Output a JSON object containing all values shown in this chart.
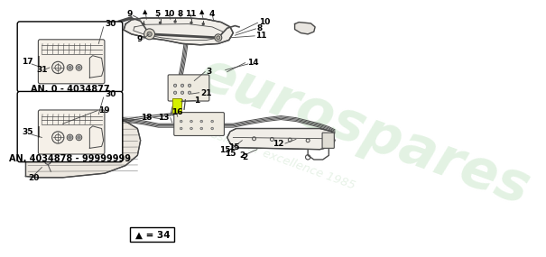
{
  "bg_color": "#ffffff",
  "watermark_text1": "eurospares",
  "watermark_text2": "a passion for excellence 1985",
  "watermark_color1": "#c8e6c8",
  "watermark_color2": "#d8ead8",
  "watermark_alpha": 0.5,
  "inset1_label": "AN. 0 - 4034877",
  "inset2_label": "AN. 4034878 - 99999999",
  "footer_note": "▲ = 34",
  "line_color": "#4a4a4a",
  "label_color": "#000000",
  "highlight_color": "#d4f000",
  "label_fontsize": 6.5,
  "note_fontsize": 7.5
}
